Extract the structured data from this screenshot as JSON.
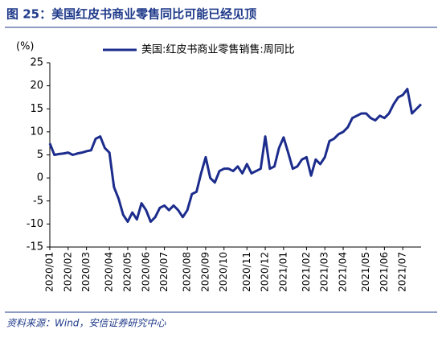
{
  "chart_data": {
    "type": "line",
    "title": "图 25：美国红皮书商业零售同比可能已经见顶",
    "y_label": "(%)",
    "source": "资料来源：Wind，安信证券研究中心",
    "legend": "top",
    "categories": [
      "2020/01",
      null,
      null,
      null,
      "2020/02",
      null,
      null,
      null,
      "2020/03",
      null,
      null,
      null,
      null,
      "2020/04",
      null,
      null,
      null,
      "2020/05",
      null,
      null,
      null,
      "2020/06",
      null,
      null,
      null,
      "2020/07",
      null,
      null,
      null,
      null,
      "2020/08",
      null,
      null,
      null,
      "2020/09",
      null,
      null,
      null,
      "2020/10",
      null,
      null,
      null,
      null,
      "2020/11",
      null,
      null,
      null,
      "2020/12",
      null,
      null,
      null,
      "2021/01",
      null,
      null,
      null,
      null,
      "2021/02",
      null,
      null,
      null,
      "2021/03",
      null,
      null,
      null,
      "2021/04",
      null,
      null,
      null,
      null,
      "2021/05",
      null,
      null,
      null,
      "2021/06",
      null,
      null,
      null,
      "2021/07",
      null,
      null,
      null,
      null
    ],
    "series": [
      {
        "name": "美国:红皮书商业零售销售:周同比",
        "color": "#1c2c8c",
        "values": [
          7.5,
          5,
          5.2,
          5.3,
          5.5,
          5,
          5.3,
          5.5,
          5.8,
          6,
          8.5,
          9,
          6.5,
          5.5,
          -2,
          -4.5,
          -8,
          -9.5,
          -7.5,
          -9,
          -5.5,
          -7,
          -9.5,
          -8.5,
          -6.5,
          -6,
          -7,
          -6,
          -7,
          -8.5,
          -7,
          -3.5,
          -3,
          1,
          4.5,
          0,
          -1,
          1.5,
          2,
          2,
          1.5,
          2.5,
          1,
          3,
          1,
          1.5,
          2,
          9,
          2,
          2.5,
          6.5,
          8.8,
          5.5,
          2,
          2.5,
          4,
          4.5,
          0.5,
          4,
          3,
          4.5,
          8,
          8.5,
          9.5,
          10,
          11,
          13,
          13.5,
          14,
          14,
          13,
          12.5,
          13.5,
          13,
          14,
          16,
          17.5,
          18,
          19.3,
          14,
          15,
          16
        ]
      }
    ],
    "ylim": [
      -15,
      25
    ],
    "yticks": [
      -15,
      -10,
      -5,
      0,
      5,
      10,
      15,
      20,
      25
    ],
    "grid": false
  }
}
